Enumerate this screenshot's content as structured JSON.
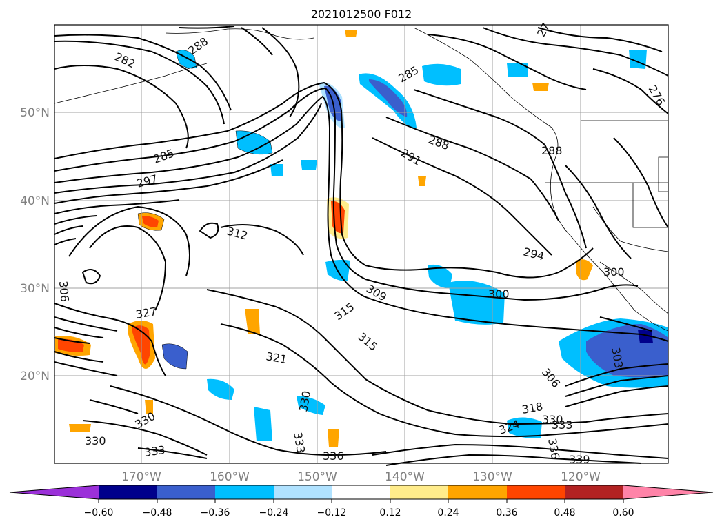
{
  "title": "2021012500 F012",
  "map": {
    "lat_labels": [
      "50°N",
      "40°N",
      "30°N",
      "20°N"
    ],
    "lon_labels": [
      "170°W",
      "160°W",
      "150°W",
      "140°W",
      "130°W",
      "120°W"
    ],
    "contour_labels": [
      "282",
      "288",
      "285",
      "285",
      "288",
      "291",
      "288",
      "297",
      "312",
      "294",
      "300",
      "309",
      "300",
      "306",
      "315",
      "315",
      "327",
      "321",
      "303",
      "306",
      "330",
      "330",
      "333",
      "333",
      "336",
      "318",
      "324",
      "330",
      "333",
      "336",
      "339",
      "276",
      "330",
      "27"
    ]
  },
  "colorbar": {
    "tick_labels": [
      "−0.60",
      "−0.48",
      "−0.36",
      "−0.24",
      "−0.12",
      "0.12",
      "0.24",
      "0.36",
      "0.48",
      "0.60"
    ],
    "colors": [
      "#9b30d9",
      "#00008b",
      "#3a5fcd",
      "#00bfff",
      "#b0e2ff",
      "#ffffff",
      "#ffec8b",
      "#ffa500",
      "#ff4500",
      "#b22222",
      "#ff83a8"
    ]
  }
}
